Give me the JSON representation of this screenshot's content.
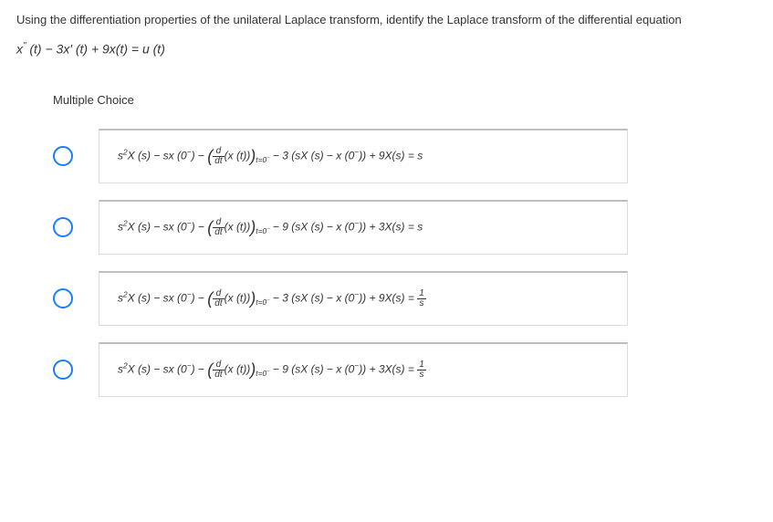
{
  "question": {
    "prompt_text": "Using the differentiation properties of the unilateral Laplace transform, identify the Laplace transform of the differential equation",
    "diff_equation_html": "x<sup>\"</sup> (t) − 3x′ (t) + 9x(t)  =  u (t)",
    "section_label": "Multiple Choice",
    "text_color": "#333333",
    "background_color": "#ffffff",
    "font_size_prompt": 13,
    "font_size_equation": 14
  },
  "choices": {
    "radio_border_color": "#1a7fff",
    "box_border_color": "#dcdcdc",
    "box_top_border_color": "#bfbfbf",
    "box_background": "#ffffff",
    "font_size": 12,
    "items": [
      {
        "coefficient_middle": "3",
        "coefficient_last": "9",
        "rhs_html": "s"
      },
      {
        "coefficient_middle": "9",
        "coefficient_last": "3",
        "rhs_html": "s"
      },
      {
        "coefficient_middle": "3",
        "coefficient_last": "9",
        "rhs_html": "<span class=\"frac\"><span class=\"num\">1</span><span class=\"den\">s</span></span>"
      },
      {
        "coefficient_middle": "9",
        "coefficient_last": "3",
        "rhs_html": "<span class=\"frac\"><span class=\"num\">1</span><span class=\"den\">s</span></span>"
      }
    ],
    "template": {
      "prefix": "s<sup>2</sup>X (s) − sx (0<sup>−</sup>) − ",
      "deriv_block": "<span class=\"big-paren\">(</span><span class=\"frac\"><span class=\"num\">d</span><span class=\"den\">dt</span></span>(x (t))<span class=\"big-paren\">)</span><sub>t=0<sup>−</sup></sub>",
      "middle_pattern": " − {A} (sX (s) − x (0<sup>−</sup>)) + {B}X(s)  =  "
    }
  }
}
